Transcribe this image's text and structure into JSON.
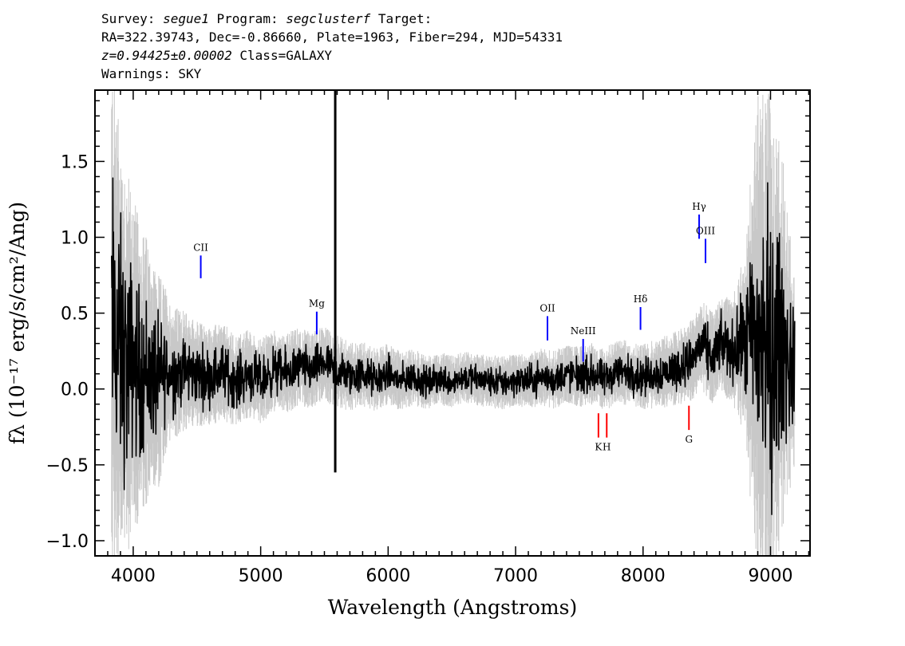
{
  "header": {
    "line1": {
      "survey_label": "Survey:",
      "survey": "segue1",
      "program_label": "Program:",
      "program": "segclusterf",
      "target_label": "Target:"
    },
    "line2": "RA=322.39743, Dec=-0.86660, Plate=1963, Fiber=294, MJD=54331",
    "line3": {
      "z": "z=0.94425±0.00002",
      "class": "Class=GALAXY"
    },
    "line4": "Warnings: SKY"
  },
  "chart_data": {
    "type": "line",
    "xlabel": "Wavelength (Angstroms)",
    "ylabel": "fλ (10⁻¹⁷ erg/s/cm²/Ang)",
    "xlim": [
      3700,
      9310
    ],
    "ylim": [
      -1.1,
      1.97
    ],
    "x_ticks": [
      4000,
      5000,
      6000,
      7000,
      8000,
      9000
    ],
    "y_ticks": [
      -1.0,
      -0.5,
      0.0,
      0.5,
      1.0,
      1.5
    ],
    "x_tick_labels": [
      "4000",
      "5000",
      "6000",
      "7000",
      "8000",
      "9000"
    ],
    "y_tick_labels": [
      "−1.0",
      "−0.5",
      "0.0",
      "0.5",
      "1.0",
      "1.5"
    ],
    "colors": {
      "flux": "#000000",
      "error_band": "#c8c8c8",
      "emission": "#0000ff",
      "absorption": "#ff0000"
    },
    "series": [
      {
        "role": "flux",
        "x": [
          3830,
          3900,
          3950,
          4000,
          4050,
          4100,
          4150,
          4200,
          4250,
          4300,
          4400,
          4500,
          4600,
          4700,
          4800,
          4900,
          5000,
          5100,
          5200,
          5300,
          5400,
          5500,
          5585,
          5600,
          5700,
          5800,
          5900,
          6000,
          6100,
          6200,
          6300,
          6400,
          6500,
          6600,
          6700,
          6800,
          6900,
          7000,
          7100,
          7200,
          7300,
          7400,
          7500,
          7600,
          7700,
          7800,
          7900,
          8000,
          8100,
          8200,
          8300,
          8400,
          8450,
          8500,
          8550,
          8600,
          8700,
          8800,
          8900,
          9000,
          9100,
          9190
        ],
        "y": [
          0.45,
          0.25,
          0.15,
          0.2,
          0.1,
          0.12,
          0.08,
          0.05,
          0.12,
          0.1,
          0.12,
          0.1,
          0.08,
          0.12,
          0.05,
          0.1,
          0.05,
          0.12,
          0.1,
          0.15,
          0.12,
          0.18,
          0.1,
          0.12,
          0.08,
          0.1,
          0.06,
          0.1,
          0.05,
          0.08,
          0.04,
          0.07,
          0.05,
          0.08,
          0.06,
          0.05,
          0.04,
          0.06,
          0.05,
          0.08,
          0.06,
          0.1,
          0.08,
          0.1,
          0.06,
          0.12,
          0.1,
          0.08,
          0.1,
          0.12,
          0.15,
          0.2,
          0.3,
          0.25,
          0.2,
          0.3,
          0.25,
          0.3,
          0.35,
          0.25,
          0.3,
          0.1
        ]
      },
      {
        "role": "error_band_halfwidth",
        "x": [
          3830,
          3900,
          4000,
          4100,
          4200,
          4300,
          4500,
          4700,
          5000,
          5300,
          5600,
          6000,
          6500,
          7000,
          7500,
          8000,
          8300,
          8500,
          8700,
          8800,
          8850,
          8900,
          9000,
          9100,
          9190
        ],
        "y": [
          1.8,
          1.5,
          1.1,
          0.9,
          0.7,
          0.45,
          0.35,
          0.32,
          0.28,
          0.26,
          0.24,
          0.2,
          0.17,
          0.18,
          0.2,
          0.22,
          0.25,
          0.3,
          0.35,
          0.6,
          1.2,
          1.6,
          1.7,
          1.2,
          0.6
        ]
      }
    ],
    "sky_spike": {
      "x": 5585,
      "y_top": 1.97,
      "y_bottom": -0.55
    },
    "emission_lines": [
      {
        "label": "CII",
        "x": 4530,
        "y0": 0.73,
        "y1": 0.88
      },
      {
        "label": "Mg",
        "x": 5440,
        "y0": 0.36,
        "y1": 0.51
      },
      {
        "label": "OII",
        "x": 7250,
        "y0": 0.32,
        "y1": 0.48
      },
      {
        "label": "NeIII",
        "x": 7530,
        "y0": 0.18,
        "y1": 0.33
      },
      {
        "label": "Hδ",
        "x": 7980,
        "y0": 0.39,
        "y1": 0.54
      },
      {
        "label": "Hγ",
        "x": 8440,
        "y0": 0.99,
        "y1": 1.15
      },
      {
        "label": "OIII",
        "x": 8490,
        "y0": 0.83,
        "y1": 0.99
      }
    ],
    "absorption_lines": [
      {
        "label": "K",
        "x": 7650,
        "y0": -0.16,
        "y1": -0.32
      },
      {
        "label": "H",
        "x": 7715,
        "y0": -0.16,
        "y1": -0.32
      },
      {
        "label": "G",
        "x": 8360,
        "y0": -0.11,
        "y1": -0.27
      }
    ]
  }
}
